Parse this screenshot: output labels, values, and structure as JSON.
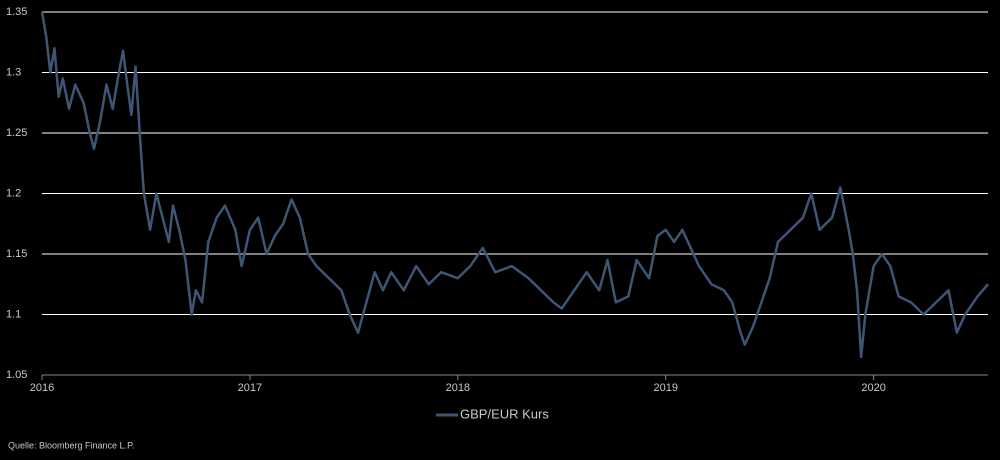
{
  "chart_data": {
    "type": "line",
    "x": [
      2016.0,
      2016.02,
      2016.04,
      2016.06,
      2016.08,
      2016.1,
      2016.13,
      2016.16,
      2016.2,
      2016.23,
      2016.25,
      2016.28,
      2016.31,
      2016.34,
      2016.37,
      2016.39,
      2016.41,
      2016.43,
      2016.45,
      2016.47,
      2016.49,
      2016.52,
      2016.55,
      2016.58,
      2016.61,
      2016.63,
      2016.66,
      2016.69,
      2016.72,
      2016.74,
      2016.77,
      2016.8,
      2016.84,
      2016.88,
      2016.93,
      2016.96,
      2017.0,
      2017.04,
      2017.08,
      2017.12,
      2017.16,
      2017.2,
      2017.24,
      2017.28,
      2017.32,
      2017.38,
      2017.44,
      2017.48,
      2017.52,
      2017.56,
      2017.6,
      2017.64,
      2017.68,
      2017.74,
      2017.8,
      2017.86,
      2017.92,
      2018.0,
      2018.06,
      2018.12,
      2018.18,
      2018.26,
      2018.34,
      2018.4,
      2018.46,
      2018.5,
      2018.56,
      2018.62,
      2018.68,
      2018.72,
      2018.76,
      2018.82,
      2018.86,
      2018.92,
      2018.96,
      2019.0,
      2019.04,
      2019.08,
      2019.12,
      2019.16,
      2019.22,
      2019.28,
      2019.32,
      2019.36,
      2019.38,
      2019.42,
      2019.46,
      2019.5,
      2019.54,
      2019.6,
      2019.66,
      2019.7,
      2019.74,
      2019.8,
      2019.84,
      2019.88,
      2019.9,
      2019.92,
      2019.94,
      2019.96,
      2020.0,
      2020.04,
      2020.08,
      2020.12,
      2020.18,
      2020.24,
      2020.3,
      2020.36,
      2020.4,
      2020.44,
      2020.5,
      2020.55
    ],
    "series": [
      {
        "name": "GBP/EUR Kurs",
        "color": "#3e5674",
        "values": [
          1.35,
          1.33,
          1.3,
          1.32,
          1.28,
          1.295,
          1.27,
          1.29,
          1.275,
          1.25,
          1.237,
          1.26,
          1.29,
          1.27,
          1.3,
          1.318,
          1.29,
          1.265,
          1.305,
          1.25,
          1.2,
          1.17,
          1.2,
          1.18,
          1.16,
          1.19,
          1.17,
          1.145,
          1.1,
          1.12,
          1.11,
          1.16,
          1.18,
          1.19,
          1.17,
          1.14,
          1.17,
          1.18,
          1.15,
          1.165,
          1.175,
          1.195,
          1.18,
          1.15,
          1.14,
          1.13,
          1.12,
          1.1,
          1.085,
          1.11,
          1.135,
          1.12,
          1.135,
          1.12,
          1.14,
          1.125,
          1.135,
          1.13,
          1.14,
          1.155,
          1.135,
          1.14,
          1.13,
          1.12,
          1.11,
          1.105,
          1.12,
          1.135,
          1.12,
          1.145,
          1.11,
          1.115,
          1.145,
          1.13,
          1.165,
          1.17,
          1.16,
          1.17,
          1.155,
          1.14,
          1.125,
          1.12,
          1.11,
          1.085,
          1.075,
          1.09,
          1.11,
          1.13,
          1.16,
          1.17,
          1.18,
          1.2,
          1.17,
          1.18,
          1.205,
          1.17,
          1.15,
          1.12,
          1.065,
          1.1,
          1.14,
          1.15,
          1.14,
          1.115,
          1.11,
          1.1,
          1.11,
          1.12,
          1.085,
          1.1,
          1.115,
          1.125
        ]
      }
    ],
    "xlim": [
      2016,
      2020.55
    ],
    "xticks": [
      2016,
      2017,
      2018,
      2019,
      2020
    ],
    "ylim": [
      1.05,
      1.35
    ],
    "yticks": [
      1.05,
      1.1,
      1.15,
      1.2,
      1.25,
      1.3,
      1.35
    ],
    "grid": true,
    "legend": "bottom",
    "source": "Quelle: Bloomberg Finance L.P."
  }
}
